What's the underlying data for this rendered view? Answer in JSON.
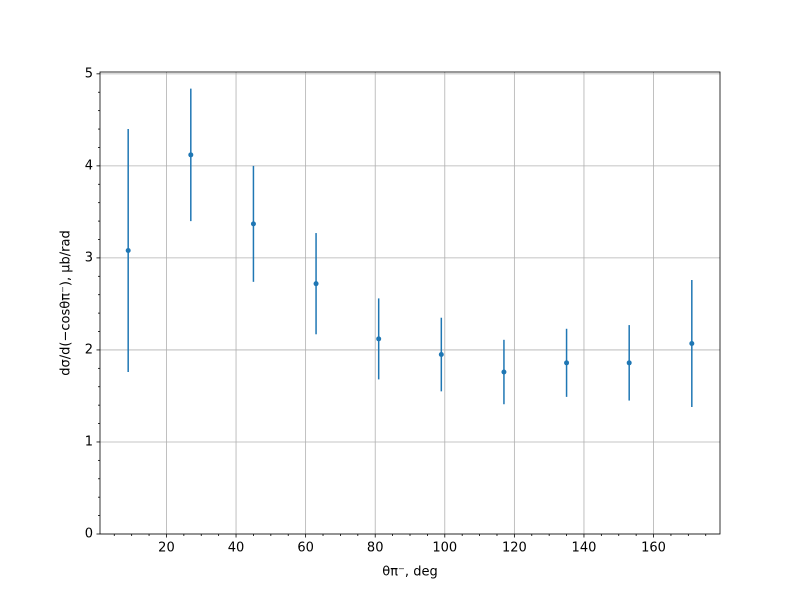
{
  "chart_data": {
    "type": "errorbar",
    "xlabel": "θπ⁻, deg",
    "ylabel": "dσ/d(−cosθπ⁻), μb/rad",
    "x": [
      9,
      27,
      45,
      63,
      81,
      99,
      117,
      135,
      153,
      171
    ],
    "values": [
      3.08,
      4.12,
      3.37,
      2.72,
      2.12,
      1.95,
      1.76,
      1.86,
      1.86,
      2.07
    ],
    "errors": [
      1.32,
      0.72,
      0.63,
      0.55,
      0.44,
      0.4,
      0.35,
      0.37,
      0.41,
      0.69
    ],
    "color": "#1f77b4",
    "xlim": [
      0.9,
      179.1
    ],
    "ylim": [
      0,
      5.02
    ],
    "xticks": [
      20,
      40,
      60,
      80,
      100,
      120,
      140,
      160
    ],
    "yticks": [
      0,
      1,
      2,
      3,
      4,
      5
    ],
    "xminorticks": [
      5,
      10,
      15,
      25,
      30,
      35,
      45,
      50,
      55,
      65,
      70,
      75,
      85,
      90,
      95,
      105,
      110,
      115,
      125,
      130,
      135,
      145,
      150,
      155,
      165,
      170,
      175
    ],
    "yminorticks": [
      0.2,
      0.4,
      0.6,
      0.8,
      1.2,
      1.4,
      1.6,
      1.8,
      2.2,
      2.4,
      2.6,
      2.8,
      3.2,
      3.4,
      3.6,
      3.8,
      4.2,
      4.4,
      4.6,
      4.8
    ],
    "grid": true
  }
}
